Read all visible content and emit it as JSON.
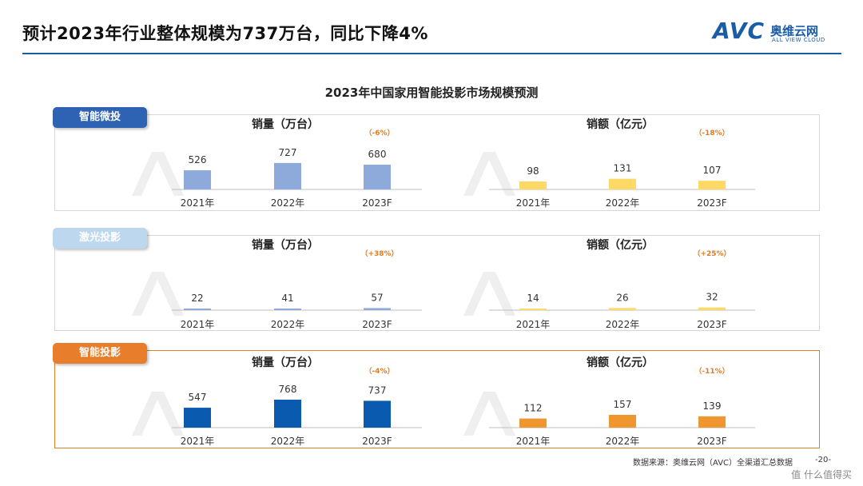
{
  "header": {
    "title": "预计2023年行业整体规模为737万台，同比下降4%",
    "logo_word": "AVC",
    "logo_cn": "奥维云网",
    "logo_en": "ALL VIEW CLOUD"
  },
  "chart_title": "2023年中国家用智能投影市场规模预测",
  "categories": [
    "2021年",
    "2022年",
    "2023F"
  ],
  "segments": [
    {
      "tag": "智能微投",
      "tag_color": "#2e63b4",
      "volume": {
        "title": "销量（万台）",
        "values": [
          526,
          727,
          680
        ],
        "change": "（-6%）",
        "color": "#8eaadb"
      },
      "revenue": {
        "title": "销额（亿元）",
        "values": [
          98,
          131,
          107
        ],
        "change": "（-18%）",
        "color": "#ffd966"
      }
    },
    {
      "tag": "激光投影",
      "tag_color": "#bdd7ee",
      "volume": {
        "title": "销量（万台）",
        "values": [
          22,
          41,
          57
        ],
        "change": "（+38%）",
        "color": "#8eaadb"
      },
      "revenue": {
        "title": "销额（亿元）",
        "values": [
          14,
          26,
          32
        ],
        "change": "（+25%）",
        "color": "#ffd966"
      }
    },
    {
      "tag": "智能投影",
      "tag_color": "#e87e2b",
      "volume": {
        "title": "销量（万台）",
        "values": [
          547,
          768,
          737
        ],
        "change": "（-4%）",
        "color": "#0a5bb0"
      },
      "revenue": {
        "title": "销额（亿元）",
        "values": [
          112,
          157,
          139
        ],
        "change": "（-11%）",
        "color": "#f0962f"
      }
    }
  ],
  "chart_data": [
    {
      "type": "bar",
      "title": "销量（万台）",
      "group": "智能微投",
      "categories": [
        "2021年",
        "2022年",
        "2023F"
      ],
      "values": [
        526,
        727,
        680
      ],
      "annotation": "（-6%）"
    },
    {
      "type": "bar",
      "title": "销额（亿元）",
      "group": "智能微投",
      "categories": [
        "2021年",
        "2022年",
        "2023F"
      ],
      "values": [
        98,
        131,
        107
      ],
      "annotation": "（-18%）"
    },
    {
      "type": "bar",
      "title": "销量（万台）",
      "group": "激光投影",
      "categories": [
        "2021年",
        "2022年",
        "2023F"
      ],
      "values": [
        22,
        41,
        57
      ],
      "annotation": "（+38%）"
    },
    {
      "type": "bar",
      "title": "销额（亿元）",
      "group": "激光投影",
      "categories": [
        "2021年",
        "2022年",
        "2023F"
      ],
      "values": [
        14,
        26,
        32
      ],
      "annotation": "（+25%）"
    },
    {
      "type": "bar",
      "title": "销量（万台）",
      "group": "智能投影",
      "categories": [
        "2021年",
        "2022年",
        "2023F"
      ],
      "values": [
        547,
        768,
        737
      ],
      "annotation": "（-4%）"
    },
    {
      "type": "bar",
      "title": "销额（亿元）",
      "group": "智能投影",
      "categories": [
        "2021年",
        "2022年",
        "2023F"
      ],
      "values": [
        112,
        157,
        139
      ],
      "annotation": "（-11%）"
    }
  ],
  "footer": {
    "source": "数据来源：奥维云网（AVC）全渠道汇总数据",
    "page": "-20-",
    "watermark": "值 什么值得买"
  },
  "colors": {
    "accent": "#1a5ca8",
    "change_text": "#e07c24"
  }
}
